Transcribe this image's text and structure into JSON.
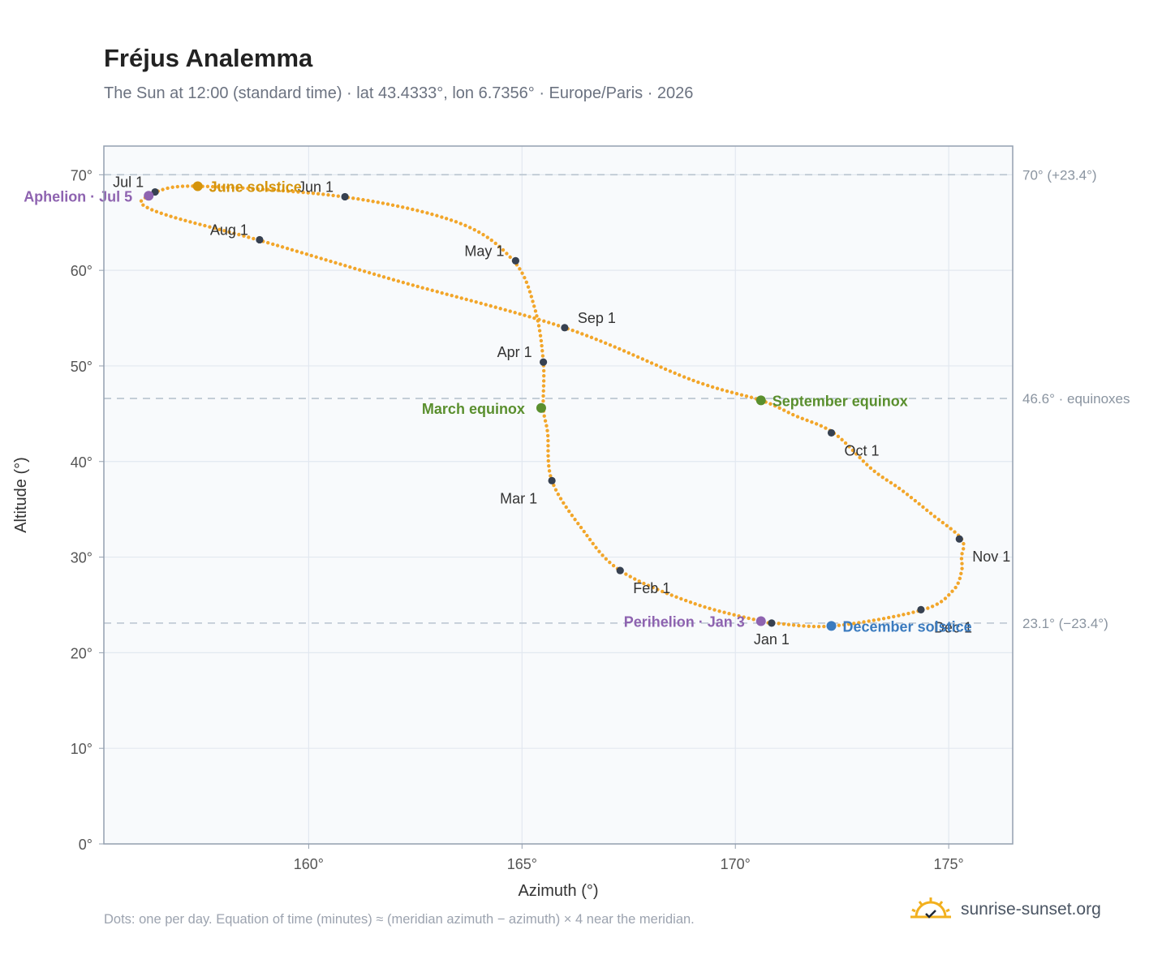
{
  "header": {
    "title": "Fréjus Analemma",
    "subtitle": "The Sun at 12:00 (standard time) · lat 43.4333°, lon 6.7356° · Europe/Paris · 2026"
  },
  "footer": {
    "note": "Dots: one per day. Equation of time (minutes) ≈ (meridian azimuth − azimuth) × 4 near the meridian.",
    "brand": "sunrise-sunset.org"
  },
  "colors": {
    "curve": "#f2a62a",
    "month_marker": "#374151",
    "solstice_june": "#d4940c",
    "solstice_december": "#3b7bbf",
    "equinox": "#5a8f2e",
    "apsis": "#8e63b0",
    "reference_line": "#b8c4cf",
    "plot_background": "#f8fafc",
    "grid": "#e2e8f0",
    "frame": "#94a0b0"
  },
  "chart_data": {
    "type": "scatter",
    "xlabel": "Azimuth (°)",
    "ylabel": "Altitude (°)",
    "xlim": [
      155.2,
      176.5
    ],
    "ylim": [
      0,
      73
    ],
    "xticks": [
      160,
      165,
      170,
      175
    ],
    "xtick_labels": [
      "160°",
      "165°",
      "170°",
      "175°"
    ],
    "yticks": [
      0,
      10,
      20,
      30,
      40,
      50,
      60,
      70
    ],
    "ytick_labels": [
      "0°",
      "10°",
      "20°",
      "30°",
      "40°",
      "50°",
      "60°",
      "70°"
    ],
    "grid": true,
    "analemma_path": [
      [
        170.9,
        23.1
      ],
      [
        172.3,
        22.8
      ],
      [
        174.4,
        24.5
      ],
      [
        175.1,
        26.5
      ],
      [
        175.3,
        28.5
      ],
      [
        175.3,
        30.0
      ],
      [
        175.3,
        31.9
      ],
      [
        174.6,
        34.5
      ],
      [
        173.9,
        37.0
      ],
      [
        173.2,
        39.2
      ],
      [
        172.3,
        43.0
      ],
      [
        171.4,
        44.8
      ],
      [
        170.6,
        46.4
      ],
      [
        169.0,
        48.5
      ],
      [
        166.0,
        54.0
      ],
      [
        162.0,
        59.0
      ],
      [
        158.8,
        63.2
      ],
      [
        156.8,
        65.6
      ],
      [
        156.1,
        66.9
      ],
      [
        156.2,
        67.7
      ],
      [
        156.4,
        68.2
      ],
      [
        157.4,
        68.8
      ],
      [
        160.8,
        67.7
      ],
      [
        163.5,
        65.0
      ],
      [
        164.8,
        61.0
      ],
      [
        165.3,
        56.0
      ],
      [
        165.5,
        50.4
      ],
      [
        165.5,
        45.6
      ],
      [
        165.6,
        43.0
      ],
      [
        165.7,
        38.0
      ],
      [
        166.4,
        33.0
      ],
      [
        167.3,
        28.6
      ],
      [
        169.0,
        25.2
      ],
      [
        170.6,
        23.3
      ],
      [
        170.9,
        23.1
      ]
    ],
    "month_markers": [
      {
        "label": "Jan 1",
        "x": 170.85,
        "y": 23.1,
        "pos": "below"
      },
      {
        "label": "Feb 1",
        "x": 167.3,
        "y": 28.6,
        "pos": "below-right"
      },
      {
        "label": "Mar 1",
        "x": 165.7,
        "y": 38.0,
        "pos": "below-left"
      },
      {
        "label": "Apr 1",
        "x": 165.5,
        "y": 50.4,
        "pos": "above-left"
      },
      {
        "label": "May 1",
        "x": 164.85,
        "y": 61.0,
        "pos": "above-left"
      },
      {
        "label": "Jun 1",
        "x": 160.85,
        "y": 67.7,
        "pos": "above-left"
      },
      {
        "label": "Jul 1",
        "x": 156.4,
        "y": 68.2,
        "pos": "above-left"
      },
      {
        "label": "Aug 1",
        "x": 158.85,
        "y": 63.2,
        "pos": "above-left"
      },
      {
        "label": "Sep 1",
        "x": 166.0,
        "y": 54.0,
        "pos": "above-right"
      },
      {
        "label": "Oct 1",
        "x": 172.25,
        "y": 43.0,
        "pos": "below-right"
      },
      {
        "label": "Nov 1",
        "x": 175.25,
        "y": 31.9,
        "pos": "below-right"
      },
      {
        "label": "Dec 1",
        "x": 174.35,
        "y": 24.5,
        "pos": "below-right"
      }
    ],
    "events": [
      {
        "label": "June solstice",
        "x": 157.4,
        "y": 68.8,
        "color": "#d4940c",
        "pos": "right"
      },
      {
        "label": "December solstice",
        "x": 172.25,
        "y": 22.8,
        "color": "#3b7bbf",
        "pos": "right"
      },
      {
        "label": "March equinox",
        "x": 165.45,
        "y": 45.6,
        "color": "#5a8f2e",
        "pos": "left"
      },
      {
        "label": "September equinox",
        "x": 170.6,
        "y": 46.4,
        "color": "#5a8f2e",
        "pos": "right"
      },
      {
        "label": "Aphelion · Jul 5",
        "x": 156.25,
        "y": 67.8,
        "color": "#8e63b0",
        "pos": "left"
      },
      {
        "label": "Perihelion · Jan 3",
        "x": 170.6,
        "y": 23.3,
        "color": "#8e63b0",
        "pos": "left"
      }
    ],
    "reference_lines": [
      {
        "y": 70.0,
        "label": "70° (+23.4°)"
      },
      {
        "y": 46.6,
        "label": "46.6° · equinoxes"
      },
      {
        "y": 23.1,
        "label": "23.1° (−23.4°)"
      }
    ]
  }
}
